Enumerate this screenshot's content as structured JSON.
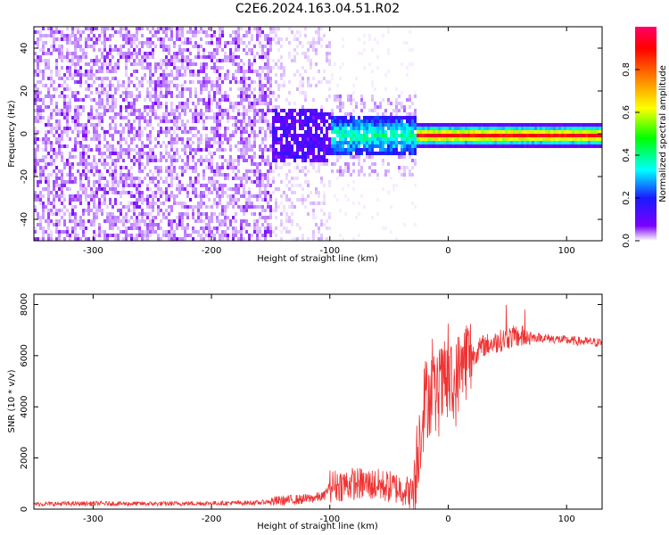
{
  "title": "C2E6.2024.163.04.51.R02",
  "chart_data": [
    {
      "type": "heatmap",
      "xlabel": "Height of straight line (km)",
      "ylabel": "Frequency (Hz)",
      "xlim": [
        -350,
        130
      ],
      "ylim": [
        -50,
        50
      ],
      "xticks": [
        -300,
        -200,
        -100,
        0,
        100
      ],
      "yticks": [
        -40,
        -20,
        0,
        20,
        40
      ],
      "colorbar": {
        "label": "Normalized spectral amplitude",
        "range": [
          0,
          1
        ],
        "ticks": [
          "0.0",
          "0.2",
          "0.4",
          "0.6",
          "0.8"
        ],
        "tick_values": [
          0,
          0.2,
          0.4,
          0.6,
          0.8
        ],
        "colormap": [
          "#ffffff",
          "#7a00ff",
          "#1a1aff",
          "#00ffff",
          "#00ff00",
          "#ffff00",
          "#ff8000",
          "#ff0000",
          "#ff0066"
        ]
      },
      "regions": [
        {
          "x_range": [
            -350,
            -150
          ],
          "freq_range": [
            -50,
            50
          ],
          "amplitude": 0.05
        },
        {
          "x_range": [
            -150,
            -100
          ],
          "freq_range": [
            -50,
            50
          ],
          "amplitude": 0.02
        },
        {
          "x_range": [
            -100,
            -30
          ],
          "freq_range": [
            -10,
            10
          ],
          "amplitude": 0.25
        },
        {
          "x_range": [
            -30,
            130
          ],
          "freq_range": [
            -3,
            3
          ],
          "amplitude": 0.85
        }
      ]
    },
    {
      "type": "line",
      "xlabel": "Height of straight line (km)",
      "ylabel": "SNR (10 * v/v)",
      "xlim": [
        -350,
        130
      ],
      "ylim": [
        0,
        8400
      ],
      "xticks": [
        -300,
        -200,
        -100,
        0,
        100
      ],
      "yticks": [
        0,
        2000,
        4000,
        6000,
        8000
      ],
      "color": "#ee3333",
      "series": [
        {
          "x": [
            -350,
            -300,
            -250,
            -200,
            -160,
            -150,
            -120,
            -105,
            -100,
            -80,
            -60,
            -40,
            -30,
            -25,
            -20,
            -15,
            -10,
            -5,
            0,
            5,
            10,
            15,
            20,
            30,
            40,
            50,
            60,
            80,
            100,
            130
          ],
          "y": [
            200,
            220,
            210,
            230,
            250,
            300,
            400,
            500,
            900,
            1000,
            950,
            800,
            600,
            2600,
            4200,
            4600,
            4300,
            4800,
            5000,
            4600,
            5600,
            5900,
            6000,
            6400,
            6500,
            6700,
            6750,
            6700,
            6600,
            6500
          ]
        }
      ]
    }
  ]
}
